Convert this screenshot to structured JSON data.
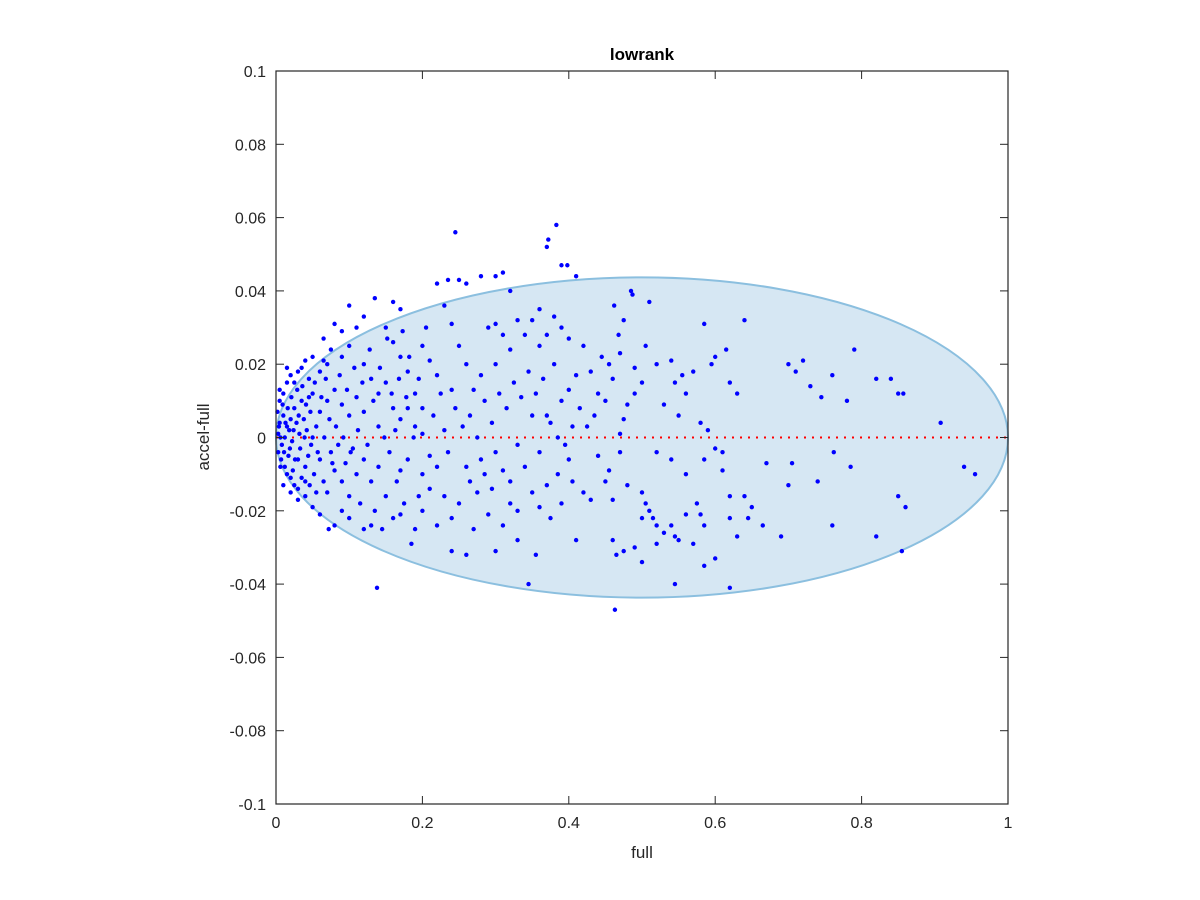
{
  "chart_data": {
    "type": "scatter",
    "title": "lowrank",
    "xlabel": "full",
    "ylabel": "accel-full",
    "xlim": [
      0,
      1
    ],
    "ylim": [
      -0.1,
      0.1
    ],
    "xticks": [
      "0",
      "0.2",
      "0.4",
      "0.6",
      "0.8",
      "1"
    ],
    "xtick_values": [
      0,
      0.2,
      0.4,
      0.6,
      0.8,
      1
    ],
    "yticks": [
      "-0.1",
      "-0.08",
      "-0.06",
      "-0.04",
      "-0.02",
      "0",
      "0.02",
      "0.04",
      "0.06",
      "0.08",
      "0.1"
    ],
    "ytick_values": [
      -0.1,
      -0.08,
      -0.06,
      -0.04,
      -0.02,
      0,
      0.02,
      0.04,
      0.06,
      0.08,
      0.1
    ],
    "grid": false,
    "colors": {
      "points": "#0000ff",
      "ellipse_fill": "#d6e7f3",
      "ellipse_edge": "#8bbfdf",
      "zero_line": "#ff0000",
      "axis": "#262626"
    },
    "ellipse": {
      "center": [
        0.5,
        0
      ],
      "radii": [
        0.5,
        0.0437
      ]
    },
    "reference_line": {
      "y": 0,
      "x_range": [
        0,
        1
      ],
      "style": "dotted"
    },
    "points": [
      [
        0.245,
        0.056
      ],
      [
        0.37,
        0.052
      ],
      [
        0.372,
        0.054
      ],
      [
        0.383,
        0.058
      ],
      [
        0.39,
        0.047
      ],
      [
        0.398,
        0.047
      ],
      [
        0.41,
        0.044
      ],
      [
        0.138,
        -0.041
      ],
      [
        0.463,
        -0.047
      ],
      [
        0.62,
        -0.041
      ],
      [
        0.94,
        -0.008
      ],
      [
        0.955,
        -0.01
      ],
      [
        0.908,
        0.004
      ],
      [
        0.79,
        0.024
      ],
      [
        0.82,
        0.016
      ],
      [
        0.84,
        0.016
      ],
      [
        0.85,
        0.012
      ],
      [
        0.857,
        0.012
      ],
      [
        0.85,
        -0.016
      ],
      [
        0.86,
        -0.019
      ],
      [
        0.82,
        -0.027
      ],
      [
        0.855,
        -0.031
      ],
      [
        0.785,
        -0.008
      ],
      [
        0.762,
        -0.004
      ],
      [
        0.76,
        -0.024
      ],
      [
        0.74,
        -0.012
      ],
      [
        0.705,
        -0.007
      ],
      [
        0.7,
        -0.013
      ],
      [
        0.69,
        -0.027
      ],
      [
        0.67,
        -0.007
      ],
      [
        0.745,
        0.011
      ],
      [
        0.76,
        0.017
      ],
      [
        0.78,
        0.01
      ],
      [
        0.72,
        0.021
      ],
      [
        0.71,
        0.018
      ],
      [
        0.7,
        0.02
      ],
      [
        0.73,
        0.014
      ],
      [
        0.64,
        0.032
      ],
      [
        0.585,
        0.031
      ],
      [
        0.6,
        0.022
      ],
      [
        0.615,
        0.024
      ],
      [
        0.595,
        0.02
      ],
      [
        0.57,
        0.018
      ],
      [
        0.555,
        0.017
      ],
      [
        0.54,
        0.021
      ],
      [
        0.545,
        0.015
      ],
      [
        0.52,
        0.02
      ],
      [
        0.485,
        0.04
      ],
      [
        0.487,
        0.039
      ],
      [
        0.51,
        0.037
      ],
      [
        0.462,
        0.036
      ],
      [
        0.475,
        0.032
      ],
      [
        0.468,
        0.028
      ],
      [
        0.47,
        0.023
      ],
      [
        0.455,
        0.02
      ],
      [
        0.445,
        0.022
      ],
      [
        0.49,
        0.019
      ],
      [
        0.5,
        0.015
      ],
      [
        0.505,
        0.025
      ],
      [
        0.49,
        0.012
      ],
      [
        0.46,
        0.016
      ],
      [
        0.48,
        0.009
      ],
      [
        0.475,
        0.005
      ],
      [
        0.53,
        0.009
      ],
      [
        0.56,
        0.012
      ],
      [
        0.55,
        0.006
      ],
      [
        0.58,
        0.004
      ],
      [
        0.59,
        0.002
      ],
      [
        0.63,
        0.012
      ],
      [
        0.62,
        0.015
      ],
      [
        0.45,
        0.01
      ],
      [
        0.44,
        0.012
      ],
      [
        0.435,
        0.006
      ],
      [
        0.47,
        0.001
      ],
      [
        0.47,
        -0.004
      ],
      [
        0.44,
        -0.005
      ],
      [
        0.455,
        -0.009
      ],
      [
        0.45,
        -0.012
      ],
      [
        0.46,
        -0.017
      ],
      [
        0.48,
        -0.013
      ],
      [
        0.5,
        -0.015
      ],
      [
        0.505,
        -0.018
      ],
      [
        0.51,
        -0.02
      ],
      [
        0.5,
        -0.022
      ],
      [
        0.515,
        -0.022
      ],
      [
        0.52,
        -0.024
      ],
      [
        0.53,
        -0.026
      ],
      [
        0.545,
        -0.027
      ],
      [
        0.55,
        -0.028
      ],
      [
        0.54,
        -0.024
      ],
      [
        0.56,
        -0.021
      ],
      [
        0.575,
        -0.018
      ],
      [
        0.58,
        -0.021
      ],
      [
        0.585,
        -0.024
      ],
      [
        0.57,
        -0.029
      ],
      [
        0.585,
        -0.035
      ],
      [
        0.6,
        -0.033
      ],
      [
        0.52,
        -0.029
      ],
      [
        0.49,
        -0.03
      ],
      [
        0.475,
        -0.031
      ],
      [
        0.46,
        -0.028
      ],
      [
        0.465,
        -0.032
      ],
      [
        0.5,
        -0.034
      ],
      [
        0.545,
        -0.04
      ],
      [
        0.61,
        -0.009
      ],
      [
        0.62,
        -0.016
      ],
      [
        0.64,
        -0.016
      ],
      [
        0.645,
        -0.022
      ],
      [
        0.65,
        -0.019
      ],
      [
        0.665,
        -0.024
      ],
      [
        0.63,
        -0.027
      ],
      [
        0.62,
        -0.022
      ],
      [
        0.56,
        -0.01
      ],
      [
        0.52,
        -0.004
      ],
      [
        0.54,
        -0.006
      ],
      [
        0.585,
        -0.006
      ],
      [
        0.6,
        -0.003
      ],
      [
        0.61,
        -0.004
      ],
      [
        0.43,
        -0.017
      ],
      [
        0.41,
        -0.028
      ],
      [
        0.42,
        -0.015
      ],
      [
        0.4,
        -0.006
      ],
      [
        0.385,
        -0.01
      ],
      [
        0.37,
        -0.013
      ],
      [
        0.36,
        -0.004
      ],
      [
        0.355,
        -0.032
      ],
      [
        0.345,
        -0.04
      ],
      [
        0.33,
        -0.028
      ],
      [
        0.3,
        -0.031
      ],
      [
        0.26,
        -0.032
      ],
      [
        0.24,
        -0.031
      ],
      [
        0.27,
        -0.025
      ],
      [
        0.29,
        -0.021
      ],
      [
        0.31,
        -0.024
      ],
      [
        0.32,
        -0.018
      ],
      [
        0.33,
        -0.02
      ],
      [
        0.25,
        -0.018
      ],
      [
        0.23,
        -0.016
      ],
      [
        0.21,
        -0.014
      ],
      [
        0.2,
        -0.01
      ],
      [
        0.22,
        -0.008
      ],
      [
        0.26,
        -0.008
      ],
      [
        0.28,
        -0.006
      ],
      [
        0.3,
        -0.004
      ],
      [
        0.33,
        -0.002
      ],
      [
        0.35,
        0.006
      ],
      [
        0.37,
        0.006
      ],
      [
        0.39,
        0.01
      ],
      [
        0.4,
        0.013
      ],
      [
        0.41,
        0.017
      ],
      [
        0.38,
        0.02
      ],
      [
        0.36,
        0.025
      ],
      [
        0.35,
        0.032
      ],
      [
        0.36,
        0.035
      ],
      [
        0.37,
        0.028
      ],
      [
        0.33,
        0.032
      ],
      [
        0.31,
        0.028
      ],
      [
        0.3,
        0.031
      ],
      [
        0.29,
        0.03
      ],
      [
        0.32,
        0.024
      ],
      [
        0.3,
        0.02
      ],
      [
        0.28,
        0.017
      ],
      [
        0.27,
        0.013
      ],
      [
        0.26,
        0.02
      ],
      [
        0.25,
        0.025
      ],
      [
        0.24,
        0.031
      ],
      [
        0.23,
        0.036
      ],
      [
        0.22,
        0.042
      ],
      [
        0.235,
        0.043
      ],
      [
        0.25,
        0.043
      ],
      [
        0.26,
        0.042
      ],
      [
        0.28,
        0.044
      ],
      [
        0.3,
        0.044
      ],
      [
        0.31,
        0.045
      ],
      [
        0.205,
        0.03
      ],
      [
        0.2,
        0.025
      ],
      [
        0.21,
        0.021
      ],
      [
        0.22,
        0.017
      ],
      [
        0.24,
        0.013
      ],
      [
        0.19,
        0.012
      ],
      [
        0.18,
        0.018
      ],
      [
        0.17,
        0.022
      ],
      [
        0.16,
        0.026
      ],
      [
        0.15,
        0.03
      ],
      [
        0.17,
        0.035
      ],
      [
        0.16,
        0.037
      ],
      [
        0.135,
        0.038
      ],
      [
        0.12,
        0.033
      ],
      [
        0.1,
        0.036
      ],
      [
        0.11,
        0.03
      ],
      [
        0.09,
        0.029
      ],
      [
        0.08,
        0.031
      ],
      [
        0.065,
        0.027
      ],
      [
        0.05,
        0.022
      ],
      [
        0.04,
        0.021
      ],
      [
        0.03,
        0.018
      ],
      [
        0.02,
        0.017
      ],
      [
        0.015,
        0.015
      ],
      [
        0.01,
        0.012
      ],
      [
        0.005,
        0.01
      ],
      [
        0.06,
        0.018
      ],
      [
        0.07,
        0.02
      ],
      [
        0.09,
        0.022
      ],
      [
        0.1,
        0.025
      ],
      [
        0.12,
        0.02
      ],
      [
        0.13,
        0.016
      ],
      [
        0.14,
        0.012
      ],
      [
        0.15,
        0.015
      ],
      [
        0.16,
        0.008
      ],
      [
        0.17,
        0.005
      ],
      [
        0.18,
        0.008
      ],
      [
        0.19,
        0.003
      ],
      [
        0.2,
        0.001
      ],
      [
        0.14,
        0.003
      ],
      [
        0.12,
        0.007
      ],
      [
        0.11,
        0.011
      ],
      [
        0.1,
        0.006
      ],
      [
        0.09,
        0.009
      ],
      [
        0.08,
        0.013
      ],
      [
        0.07,
        0.01
      ],
      [
        0.06,
        0.007
      ],
      [
        0.05,
        0.012
      ],
      [
        0.045,
        0.016
      ],
      [
        0.035,
        0.01
      ],
      [
        0.025,
        0.008
      ],
      [
        0.02,
        0.005
      ],
      [
        0.015,
        0.003
      ],
      [
        0.01,
        0.006
      ],
      [
        0.005,
        0.004
      ],
      [
        0.003,
        0.001
      ],
      [
        0.008,
        -0.002
      ],
      [
        0.012,
        0.0
      ],
      [
        0.018,
        0.002
      ],
      [
        0.022,
        -0.001
      ],
      [
        0.028,
        0.004
      ],
      [
        0.032,
        0.001
      ],
      [
        0.038,
        0.005
      ],
      [
        0.042,
        0.002
      ],
      [
        0.048,
        -0.002
      ],
      [
        0.055,
        0.003
      ],
      [
        0.003,
        -0.004
      ],
      [
        0.007,
        -0.006
      ],
      [
        0.012,
        -0.008
      ],
      [
        0.017,
        -0.005
      ],
      [
        0.023,
        -0.009
      ],
      [
        0.03,
        -0.006
      ],
      [
        0.035,
        -0.011
      ],
      [
        0.04,
        -0.008
      ],
      [
        0.046,
        -0.013
      ],
      [
        0.052,
        -0.01
      ],
      [
        0.06,
        -0.006
      ],
      [
        0.065,
        -0.012
      ],
      [
        0.07,
        -0.015
      ],
      [
        0.075,
        -0.004
      ],
      [
        0.08,
        -0.009
      ],
      [
        0.085,
        -0.002
      ],
      [
        0.09,
        -0.012
      ],
      [
        0.095,
        -0.007
      ],
      [
        0.1,
        -0.016
      ],
      [
        0.105,
        -0.003
      ],
      [
        0.11,
        -0.01
      ],
      [
        0.115,
        -0.018
      ],
      [
        0.12,
        -0.006
      ],
      [
        0.13,
        -0.012
      ],
      [
        0.135,
        -0.02
      ],
      [
        0.14,
        -0.008
      ],
      [
        0.15,
        -0.016
      ],
      [
        0.155,
        -0.004
      ],
      [
        0.16,
        -0.022
      ],
      [
        0.165,
        -0.012
      ],
      [
        0.175,
        -0.018
      ],
      [
        0.18,
        -0.006
      ],
      [
        0.19,
        -0.025
      ],
      [
        0.185,
        -0.029
      ],
      [
        0.17,
        -0.021
      ],
      [
        0.145,
        -0.025
      ],
      [
        0.13,
        -0.024
      ],
      [
        0.12,
        -0.025
      ],
      [
        0.1,
        -0.022
      ],
      [
        0.09,
        -0.02
      ],
      [
        0.08,
        -0.024
      ],
      [
        0.072,
        -0.025
      ],
      [
        0.06,
        -0.021
      ],
      [
        0.05,
        -0.019
      ],
      [
        0.04,
        -0.016
      ],
      [
        0.03,
        -0.014
      ],
      [
        0.025,
        -0.013
      ],
      [
        0.02,
        -0.011
      ],
      [
        0.015,
        -0.01
      ],
      [
        0.006,
        -0.008
      ],
      [
        0.002,
        0.007
      ],
      [
        0.004,
        0.003
      ],
      [
        0.006,
        0.0
      ],
      [
        0.009,
        0.009
      ],
      [
        0.011,
        -0.004
      ],
      [
        0.013,
        0.004
      ],
      [
        0.016,
        0.008
      ],
      [
        0.019,
        -0.003
      ],
      [
        0.021,
        0.011
      ],
      [
        0.024,
        0.002
      ],
      [
        0.026,
        -0.006
      ],
      [
        0.029,
        0.013
      ],
      [
        0.031,
        0.006
      ],
      [
        0.033,
        -0.003
      ],
      [
        0.036,
        0.014
      ],
      [
        0.039,
        0.0
      ],
      [
        0.041,
        0.009
      ],
      [
        0.044,
        -0.005
      ],
      [
        0.047,
        0.007
      ],
      [
        0.05,
        0.0
      ],
      [
        0.053,
        0.015
      ],
      [
        0.057,
        -0.004
      ],
      [
        0.062,
        0.011
      ],
      [
        0.066,
        0.0
      ],
      [
        0.068,
        0.016
      ],
      [
        0.073,
        0.005
      ],
      [
        0.077,
        -0.007
      ],
      [
        0.082,
        0.003
      ],
      [
        0.087,
        0.017
      ],
      [
        0.092,
        0.0
      ],
      [
        0.097,
        0.013
      ],
      [
        0.102,
        -0.004
      ],
      [
        0.107,
        0.019
      ],
      [
        0.112,
        0.002
      ],
      [
        0.118,
        0.015
      ],
      [
        0.125,
        -0.002
      ],
      [
        0.128,
        0.024
      ],
      [
        0.133,
        0.01
      ],
      [
        0.142,
        0.019
      ],
      [
        0.148,
        0.0
      ],
      [
        0.152,
        0.027
      ],
      [
        0.158,
        0.012
      ],
      [
        0.163,
        0.002
      ],
      [
        0.168,
        0.016
      ],
      [
        0.173,
        0.029
      ],
      [
        0.178,
        0.011
      ],
      [
        0.182,
        0.022
      ],
      [
        0.188,
        0.0
      ],
      [
        0.195,
        0.016
      ],
      [
        0.2,
        0.008
      ],
      [
        0.215,
        0.006
      ],
      [
        0.225,
        0.012
      ],
      [
        0.23,
        0.002
      ],
      [
        0.235,
        -0.004
      ],
      [
        0.245,
        0.008
      ],
      [
        0.255,
        0.003
      ],
      [
        0.265,
        0.006
      ],
      [
        0.275,
        0.0
      ],
      [
        0.285,
        0.01
      ],
      [
        0.295,
        0.004
      ],
      [
        0.305,
        0.012
      ],
      [
        0.315,
        0.008
      ],
      [
        0.325,
        0.015
      ],
      [
        0.335,
        0.011
      ],
      [
        0.345,
        0.018
      ],
      [
        0.355,
        0.012
      ],
      [
        0.365,
        0.016
      ],
      [
        0.375,
        0.004
      ],
      [
        0.385,
        0.0
      ],
      [
        0.395,
        -0.002
      ],
      [
        0.405,
        0.003
      ],
      [
        0.415,
        0.008
      ],
      [
        0.425,
        0.003
      ],
      [
        0.43,
        0.018
      ],
      [
        0.42,
        0.025
      ],
      [
        0.4,
        0.027
      ],
      [
        0.39,
        0.03
      ],
      [
        0.38,
        0.033
      ],
      [
        0.34,
        0.028
      ],
      [
        0.32,
        0.04
      ],
      [
        0.265,
        -0.012
      ],
      [
        0.275,
        -0.015
      ],
      [
        0.285,
        -0.01
      ],
      [
        0.295,
        -0.014
      ],
      [
        0.31,
        -0.009
      ],
      [
        0.32,
        -0.012
      ],
      [
        0.34,
        -0.008
      ],
      [
        0.35,
        -0.015
      ],
      [
        0.36,
        -0.019
      ],
      [
        0.375,
        -0.022
      ],
      [
        0.39,
        -0.018
      ],
      [
        0.405,
        -0.012
      ],
      [
        0.24,
        -0.022
      ],
      [
        0.22,
        -0.024
      ],
      [
        0.2,
        -0.02
      ],
      [
        0.21,
        -0.005
      ],
      [
        0.195,
        -0.016
      ],
      [
        0.17,
        -0.009
      ],
      [
        0.005,
        0.013
      ],
      [
        0.01,
        -0.013
      ],
      [
        0.015,
        0.019
      ],
      [
        0.02,
        -0.015
      ],
      [
        0.025,
        0.015
      ],
      [
        0.03,
        -0.017
      ],
      [
        0.035,
        0.019
      ],
      [
        0.04,
        -0.012
      ],
      [
        0.045,
        0.011
      ],
      [
        0.055,
        -0.015
      ],
      [
        0.065,
        0.021
      ],
      [
        0.075,
        0.024
      ]
    ]
  }
}
